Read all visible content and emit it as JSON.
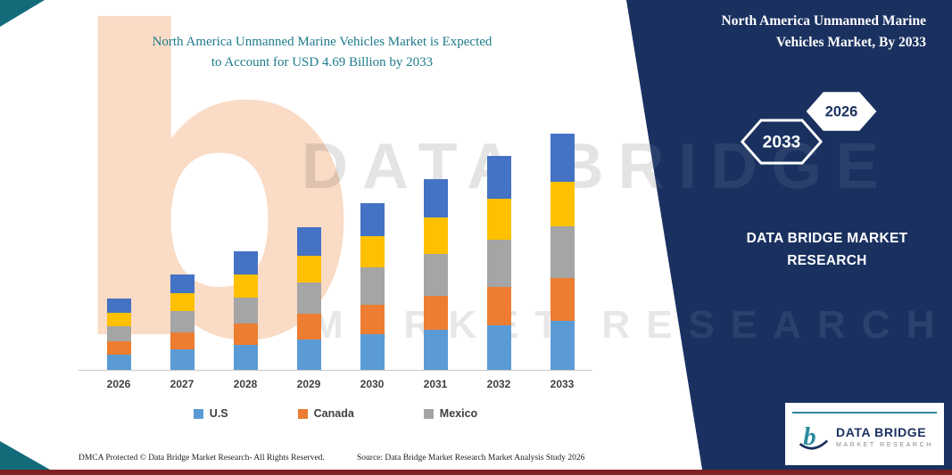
{
  "page_title": {
    "line1": "North America Unmanned Marine Vehicles Market is Expected",
    "line2": "to Account for USD 4.69 Billion by 2033"
  },
  "side_panel": {
    "heading": "North America Unmanned Marine Vehicles Market, By 2033",
    "badge_primary": "2033",
    "badge_secondary": "2026",
    "brand_line": "DATA BRIDGE MARKET RESEARCH",
    "bg_color": "#1a3160"
  },
  "watermark": {
    "letter": "b",
    "line1": "DATA BRIDGE",
    "line2": "MARKET RESEARCH"
  },
  "logo": {
    "mark": "b",
    "name": "DATA BRIDGE",
    "tagline": "MARKET RESEARCH"
  },
  "footer": {
    "dmca": "DMCA Protected © Data Bridge Market Research-  All Rights Reserved.",
    "source": "Source: Data Bridge Market Research  Market Analysis Study 2026"
  },
  "chart_data": {
    "type": "bar",
    "stacked": true,
    "title": "North America Unmanned Marine Vehicles Market is Expected to Account for USD 4.69 Billion by 2033",
    "unit": "USD Billion",
    "categories": [
      "2026",
      "2027",
      "2028",
      "2029",
      "2030",
      "2031",
      "2032",
      "2033"
    ],
    "series": [
      {
        "name": "U.S",
        "color": "#5B9BD5",
        "values": [
          0.3,
          0.4,
          0.5,
          0.6,
          0.7,
          0.79,
          0.89,
          0.98
        ]
      },
      {
        "name": "Canada",
        "color": "#ED7D31",
        "values": [
          0.26,
          0.34,
          0.42,
          0.51,
          0.6,
          0.68,
          0.76,
          0.84
        ]
      },
      {
        "name": "Mexico",
        "color": "#A5A5A5",
        "values": [
          0.31,
          0.42,
          0.52,
          0.62,
          0.73,
          0.83,
          0.93,
          1.03
        ]
      },
      {
        "name": "Unlabeled (yellow)",
        "color": "#FFC000",
        "values": [
          0.27,
          0.36,
          0.45,
          0.54,
          0.63,
          0.72,
          0.81,
          0.89
        ]
      },
      {
        "name": "Unlabeled (blue)",
        "color": "#4472C4",
        "values": [
          0.28,
          0.37,
          0.47,
          0.57,
          0.65,
          0.76,
          0.85,
          0.95
        ]
      }
    ],
    "totals": [
      1.42,
      1.89,
      2.36,
      2.84,
      3.31,
      3.78,
      4.24,
      4.69
    ],
    "legend": [
      {
        "label": "U.S",
        "color": "#5B9BD5"
      },
      {
        "label": "Canada",
        "color": "#ED7D31"
      },
      {
        "label": "Mexico",
        "color": "#A5A5A5"
      }
    ],
    "ylim": [
      0,
      4.69
    ],
    "grid": false,
    "y_axis_visible": false,
    "legend_position": "bottom"
  }
}
